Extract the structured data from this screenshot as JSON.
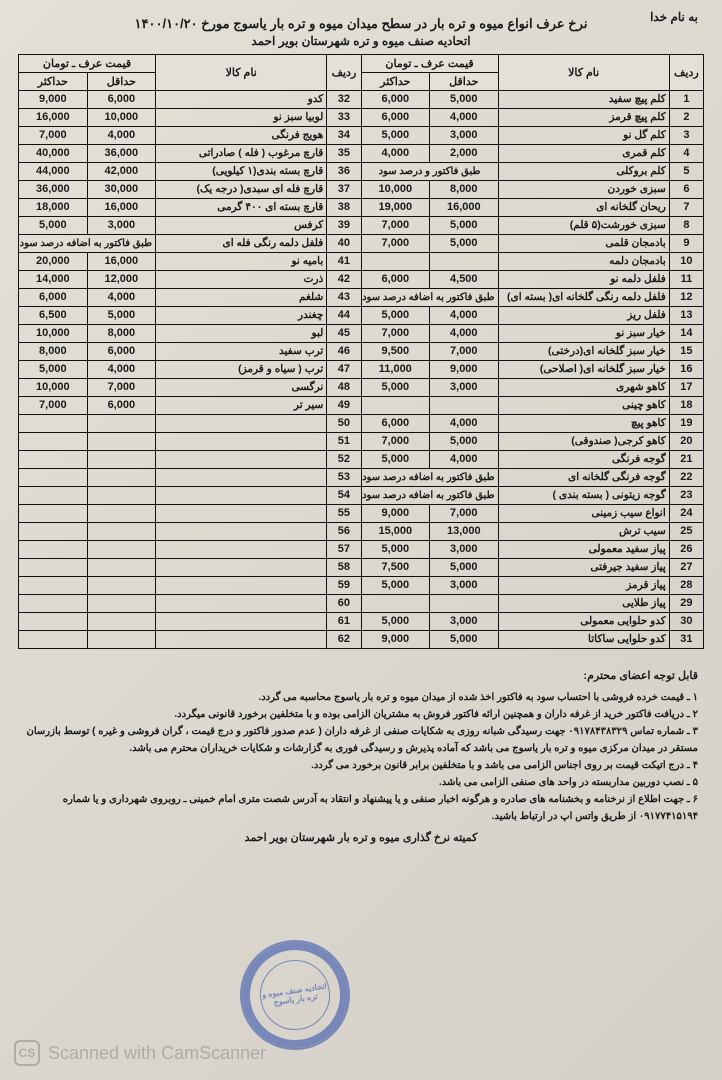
{
  "header": {
    "bismillah": "به نام خدا",
    "title": "نرخ عرف انواع میوه و تره بار در سطح میدان میوه و تره بار یاسوج مورخ ۱۴۰۰/۱۰/۲۰",
    "subtitle": "اتحادیه صنف میوه و تره شهرستان بویر احمد"
  },
  "table": {
    "head": {
      "row": "ردیف",
      "name": "نام کالا",
      "price_span": "قیمت عرف ـ تومان",
      "min": "حداقل",
      "max": "حداکثر"
    },
    "note_span": "طبق فاکتور به اضافه درصد سود",
    "note_span2": "طبق فاکتور و درصد سود",
    "right": [
      {
        "r": "1",
        "n": "کلم پیچ سفید",
        "min": "5,000",
        "max": "6,000"
      },
      {
        "r": "2",
        "n": "کلم پیچ قرمز",
        "min": "4,000",
        "max": "6,000"
      },
      {
        "r": "3",
        "n": "کلم گل نو",
        "min": "3,000",
        "max": "5,000"
      },
      {
        "r": "4",
        "n": "کلم قمری",
        "min": "2,000",
        "max": "4,000"
      },
      {
        "r": "5",
        "n": "کلم بروکلی",
        "span": "note2"
      },
      {
        "r": "6",
        "n": "سبزی خوردن",
        "min": "8,000",
        "max": "10,000"
      },
      {
        "r": "7",
        "n": "ریحان گلخانه ای",
        "min": "16,000",
        "max": "19,000"
      },
      {
        "r": "8",
        "n": "سبزی خورشت(۵ قلم)",
        "min": "5,000",
        "max": "7,000"
      },
      {
        "r": "9",
        "n": "بادمجان قلمی",
        "min": "5,000",
        "max": "7,000"
      },
      {
        "r": "10",
        "n": "بادمجان دلمه",
        "min": "",
        "max": ""
      },
      {
        "r": "11",
        "n": "فلفل دلمه نو",
        "min": "4,500",
        "max": "6,000"
      },
      {
        "r": "12",
        "n": "فلفل دلمه رنگی گلخانه ای( بسته ای)",
        "span": "note"
      },
      {
        "r": "13",
        "n": "فلفل ریز",
        "min": "4,000",
        "max": "5,000"
      },
      {
        "r": "14",
        "n": "خیار سبز نو",
        "min": "4,000",
        "max": "7,000"
      },
      {
        "r": "15",
        "n": "خیار سبز گلخانه ای(درختی)",
        "min": "7,000",
        "max": "9,500"
      },
      {
        "r": "16",
        "n": "خیار سبز گلخانه ای( اصلاحی)",
        "min": "9,000",
        "max": "11,000"
      },
      {
        "r": "17",
        "n": "کاهو شهری",
        "min": "3,000",
        "max": "5,000"
      },
      {
        "r": "18",
        "n": "کاهو چینی",
        "min": "",
        "max": ""
      },
      {
        "r": "19",
        "n": "کاهو پیچ",
        "min": "4,000",
        "max": "6,000"
      },
      {
        "r": "20",
        "n": "کاهو کرجی( صندوقی)",
        "min": "5,000",
        "max": "7,000"
      },
      {
        "r": "21",
        "n": "گوجه فرنگی",
        "min": "4,000",
        "max": "5,000"
      },
      {
        "r": "22",
        "n": "گوجه فرنگی گلخانه ای",
        "span": "note"
      },
      {
        "r": "23",
        "n": "گوجه زیتونی ( بسته بندی )",
        "span": "note"
      },
      {
        "r": "24",
        "n": "انواع سیب زمینی",
        "min": "7,000",
        "max": "9,000"
      },
      {
        "r": "25",
        "n": "سیب ترش",
        "min": "13,000",
        "max": "15,000"
      },
      {
        "r": "26",
        "n": "پیاز سفید معمولی",
        "min": "3,000",
        "max": "5,000"
      },
      {
        "r": "27",
        "n": "پیاز سفید جیرفتی",
        "min": "5,000",
        "max": "7,500"
      },
      {
        "r": "28",
        "n": "پیاز قرمز",
        "min": "3,000",
        "max": "5,000"
      },
      {
        "r": "29",
        "n": "پیاز طلایی",
        "min": "",
        "max": ""
      },
      {
        "r": "30",
        "n": "کدو حلوایی معمولی",
        "min": "3,000",
        "max": "5,000"
      },
      {
        "r": "31",
        "n": "کدو حلوایی ساکاتا",
        "min": "5,000",
        "max": "9,000"
      }
    ],
    "left": [
      {
        "r": "32",
        "n": "کدو",
        "min": "6,000",
        "max": "9,000"
      },
      {
        "r": "33",
        "n": "لوبیا سبز نو",
        "min": "10,000",
        "max": "16,000"
      },
      {
        "r": "34",
        "n": "هویج فرنگی",
        "min": "4,000",
        "max": "7,000"
      },
      {
        "r": "35",
        "n": "قارچ مرغوب ( فله ) صادراتی",
        "min": "36,000",
        "max": "40,000"
      },
      {
        "r": "36",
        "n": "قارچ بسته بندی(۱ کیلویی)",
        "min": "42,000",
        "max": "44,000"
      },
      {
        "r": "37",
        "n": "قارچ فله ای سبدی( درجه یک)",
        "min": "30,000",
        "max": "36,000"
      },
      {
        "r": "38",
        "n": "قارچ بسته ای ۴۰۰ گرمی",
        "min": "16,000",
        "max": "18,000"
      },
      {
        "r": "39",
        "n": "کرفس",
        "min": "3,000",
        "max": "5,000"
      },
      {
        "r": "40",
        "n": "فلفل دلمه رنگی فله ای",
        "span": "note"
      },
      {
        "r": "41",
        "n": "بامیه نو",
        "min": "16,000",
        "max": "20,000"
      },
      {
        "r": "42",
        "n": "ذرت",
        "min": "12,000",
        "max": "14,000"
      },
      {
        "r": "43",
        "n": "شلغم",
        "min": "4,000",
        "max": "6,000"
      },
      {
        "r": "44",
        "n": "چغندر",
        "min": "5,000",
        "max": "6,500"
      },
      {
        "r": "45",
        "n": "لبو",
        "min": "8,000",
        "max": "10,000"
      },
      {
        "r": "46",
        "n": "ترب سفید",
        "min": "6,000",
        "max": "8,000"
      },
      {
        "r": "47",
        "n": "ترب ( سیاه و قرمز)",
        "min": "4,000",
        "max": "5,000"
      },
      {
        "r": "48",
        "n": "نرگسی",
        "min": "7,000",
        "max": "10,000"
      },
      {
        "r": "49",
        "n": "سیر تر",
        "min": "6,000",
        "max": "7,000"
      },
      {
        "r": "50",
        "n": "",
        "min": "",
        "max": ""
      },
      {
        "r": "51",
        "n": "",
        "min": "",
        "max": ""
      },
      {
        "r": "52",
        "n": "",
        "min": "",
        "max": ""
      },
      {
        "r": "53",
        "n": "",
        "min": "",
        "max": ""
      },
      {
        "r": "54",
        "n": "",
        "min": "",
        "max": ""
      },
      {
        "r": "55",
        "n": "",
        "min": "",
        "max": ""
      },
      {
        "r": "56",
        "n": "",
        "min": "",
        "max": ""
      },
      {
        "r": "57",
        "n": "",
        "min": "",
        "max": ""
      },
      {
        "r": "58",
        "n": "",
        "min": "",
        "max": ""
      },
      {
        "r": "59",
        "n": "",
        "min": "",
        "max": ""
      },
      {
        "r": "60",
        "n": "",
        "min": "",
        "max": ""
      },
      {
        "r": "61",
        "n": "",
        "min": "",
        "max": ""
      },
      {
        "r": "62",
        "n": "",
        "min": "",
        "max": ""
      }
    ]
  },
  "notes": {
    "lead": "قابل توجه اعضای محترم:",
    "l1": "۱ ـ قیمت خرده فروشی با احتساب سود به فاکتور اخذ شده از میدان میوه و تره بار یاسوج محاسبه می گردد.",
    "l2": "۲ ـ دریافت فاکتور خرید از غرفه داران و همچنین ارائه فاکتور فروش به مشتریان الزامی بوده و با متخلفین برخورد قانونی میگردد.",
    "l3": "۳ ـ شماره تماس ۰۹۱۷۸۴۳۸۳۲۹ جهت رسیدگی شبانه روزی به شکایات صنفی از غرفه داران ( عدم صدور فاکتور و درج قیمت ، گران فروشی و غیره ) توسط بازرسان مستقر در میدان مرکزی میوه و تره بار یاسوج می باشد که آماده پذیرش و رسیدگی فوری به گزارشات و شکایات خریداران محترم می باشد.",
    "l4": "۴ ـ درج اتیکت قیمت بر روی اجناس الزامی می باشد و با متخلفین برابر قانون برخورد می گردد.",
    "l5": "۵ ـ نصب دوربین مداربسته در واحد های صنفی الزامی می باشد.",
    "l6": "۶ ـ جهت اطلاع از نرخنامه و بخشنامه های صادره و هرگونه اخبار صنفی و یا پیشنهاد و انتقاد به آدرس شصت متری امام خمینی ـ روبروی شهرداری و یا شماره ۰۹۱۷۷۴۱۵۱۹۴ از طریق واتس اپ در ارتباط باشید."
  },
  "committee": "کمیته نرخ گذاری میوه و تره بار شهرستان بویر احمد",
  "stamp": "اتحادیه صنف میوه و تره بار\nیاسوج",
  "camscanner": {
    "badge": "CS",
    "text": "Scanned with CamScanner"
  }
}
